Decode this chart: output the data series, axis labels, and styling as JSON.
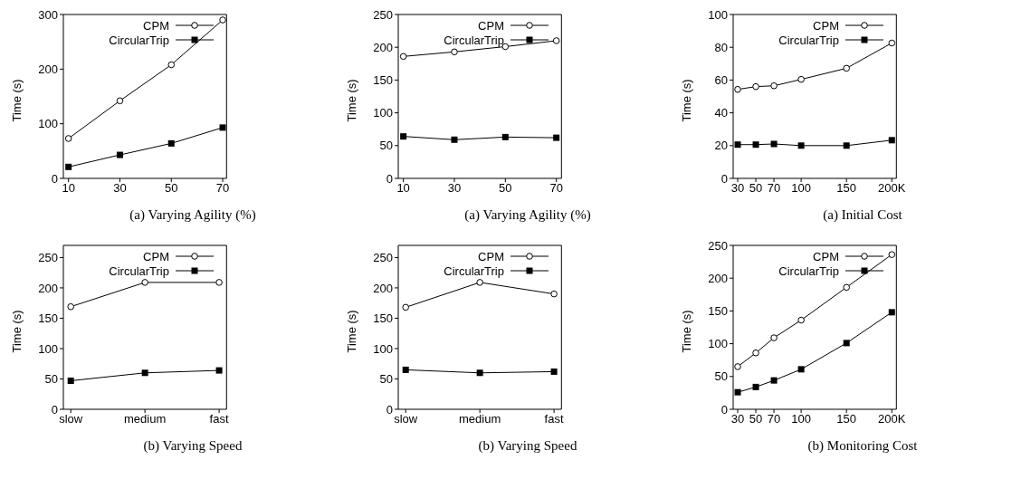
{
  "chart_data": [
    {
      "type": "line",
      "title": "(a)  Varying Agility (%)",
      "ylabel": "Time (s)",
      "x": [
        10,
        30,
        50,
        70
      ],
      "xlim": [
        8,
        71.5
      ],
      "xticks": [
        10,
        30,
        50,
        70
      ],
      "ylim": [
        0,
        300
      ],
      "yticks": [
        0,
        100,
        200,
        300
      ],
      "grid": false,
      "legend": "top right",
      "series": [
        {
          "name": "CPM",
          "color": "#000000",
          "marker": "circle",
          "values": [
            73,
            142,
            208,
            290
          ]
        },
        {
          "name": "CircularTrip",
          "color": "#000000",
          "marker": "square",
          "values": [
            21,
            43,
            64,
            93
          ]
        }
      ]
    },
    {
      "type": "line",
      "title": "(a)  Varying Agility (%)",
      "ylabel": "Time (s)",
      "x": [
        10,
        30,
        50,
        70
      ],
      "xlim": [
        8,
        72
      ],
      "xticks": [
        10,
        30,
        50,
        70
      ],
      "ylim": [
        0,
        250
      ],
      "yticks": [
        0,
        50,
        100,
        150,
        200,
        250
      ],
      "grid": false,
      "legend": "top right",
      "series": [
        {
          "name": "CPM",
          "color": "#000000",
          "marker": "circle",
          "values": [
            186,
            193,
            201,
            210
          ]
        },
        {
          "name": "CircularTrip",
          "color": "#000000",
          "marker": "square",
          "values": [
            64,
            59,
            63,
            62
          ]
        }
      ]
    },
    {
      "type": "line",
      "title": "(a)  Initial Cost",
      "ylabel": "Time (s)",
      "x": [
        30,
        50,
        70,
        100,
        150,
        200
      ],
      "xlim": [
        25,
        205
      ],
      "xticks": [
        30,
        50,
        70,
        100,
        150,
        {
          "value": 200,
          "label": "200K"
        }
      ],
      "ylim": [
        0,
        100
      ],
      "yticks": [
        0,
        20,
        40,
        60,
        80,
        100
      ],
      "grid": false,
      "legend": "top right",
      "series": [
        {
          "name": "CPM",
          "color": "#000000",
          "marker": "circle",
          "values": [
            54.3,
            56,
            56.5,
            60.4,
            67.2,
            82.6
          ]
        },
        {
          "name": "CircularTrip",
          "color": "#000000",
          "marker": "square",
          "values": [
            20.6,
            20.6,
            21,
            20,
            20,
            23.3
          ]
        }
      ]
    },
    {
      "type": "line",
      "title": "(b)  Varying Speed",
      "ylabel": "Time (s)",
      "categories": [
        "slow",
        "medium",
        "fast"
      ],
      "ylim": [
        0,
        270
      ],
      "yticks": [
        0,
        50,
        100,
        150,
        200,
        250
      ],
      "grid": false,
      "legend": "top right",
      "series": [
        {
          "name": "CPM",
          "color": "#000000",
          "marker": "circle",
          "values": [
            169,
            209,
            209
          ]
        },
        {
          "name": "CircularTrip",
          "color": "#000000",
          "marker": "square",
          "values": [
            47,
            60,
            64
          ]
        }
      ]
    },
    {
      "type": "line",
      "title": "(b)  Varying Speed",
      "ylabel": "Time (s)",
      "categories": [
        "slow",
        "medium",
        "fast"
      ],
      "ylim": [
        0,
        270
      ],
      "yticks": [
        0,
        50,
        100,
        150,
        200,
        250
      ],
      "grid": false,
      "legend": "top right",
      "series": [
        {
          "name": "CPM",
          "color": "#000000",
          "marker": "circle",
          "values": [
            168,
            209,
            190
          ]
        },
        {
          "name": "CircularTrip",
          "color": "#000000",
          "marker": "square",
          "values": [
            65,
            60,
            62
          ]
        }
      ]
    },
    {
      "type": "line",
      "title": "(b)  Monitoring Cost",
      "ylabel": "Time (s)",
      "x": [
        30,
        50,
        70,
        100,
        150,
        200
      ],
      "xlim": [
        25,
        205
      ],
      "xticks": [
        30,
        50,
        70,
        100,
        150,
        {
          "value": 200,
          "label": "200K"
        }
      ],
      "ylim": [
        0,
        250
      ],
      "yticks": [
        0,
        50,
        100,
        150,
        200,
        250
      ],
      "grid": false,
      "legend": "top right",
      "series": [
        {
          "name": "CPM",
          "color": "#000000",
          "marker": "circle",
          "values": [
            65,
            86,
            109,
            136,
            186,
            236
          ]
        },
        {
          "name": "CircularTrip",
          "color": "#000000",
          "marker": "square",
          "values": [
            26,
            34,
            44,
            61,
            101,
            148
          ]
        }
      ]
    }
  ]
}
